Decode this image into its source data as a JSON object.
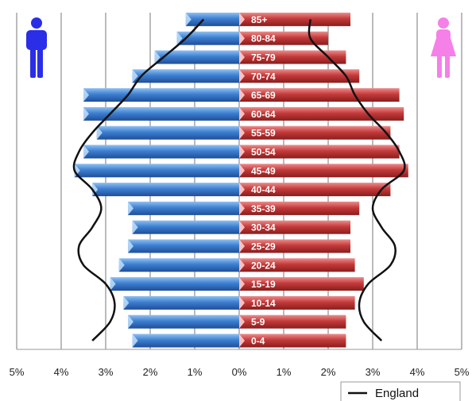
{
  "chart_data": {
    "type": "bar",
    "subtype": "population-pyramid",
    "orientation": "horizontal",
    "categories": [
      "0-4",
      "5-9",
      "10-14",
      "15-19",
      "20-24",
      "25-29",
      "30-34",
      "35-39",
      "40-44",
      "45-49",
      "50-54",
      "55-59",
      "60-64",
      "65-69",
      "70-74",
      "75-79",
      "80-84",
      "85+"
    ],
    "series": [
      {
        "side": "left",
        "color": "#3d7fd0",
        "values": [
          2.4,
          2.5,
          2.6,
          2.9,
          2.7,
          2.5,
          2.4,
          2.5,
          3.3,
          3.7,
          3.5,
          3.2,
          3.5,
          3.5,
          2.4,
          1.9,
          1.4,
          1.2
        ]
      },
      {
        "side": "right",
        "color": "#c43a3a",
        "values": [
          2.4,
          2.4,
          2.6,
          2.8,
          2.6,
          2.5,
          2.5,
          2.7,
          3.4,
          3.8,
          3.6,
          3.4,
          3.7,
          3.6,
          2.7,
          2.4,
          2.0,
          2.5
        ]
      },
      {
        "name": "England",
        "type": "line",
        "color": "#111111",
        "left": [
          3.3,
          2.9,
          2.8,
          3.0,
          3.5,
          3.6,
          3.3,
          3.1,
          3.3,
          3.7,
          3.6,
          3.3,
          2.9,
          2.5,
          2.2,
          1.7,
          1.2,
          0.8
        ],
        "right": [
          3.2,
          2.8,
          2.7,
          2.9,
          3.4,
          3.5,
          3.2,
          3.0,
          3.2,
          3.7,
          3.6,
          3.3,
          2.9,
          2.6,
          2.4,
          2.0,
          1.6,
          1.6
        ]
      }
    ],
    "x_ticks": [
      "5%",
      "4%",
      "3%",
      "2%",
      "1%",
      "0%",
      "1%",
      "2%",
      "3%",
      "4%",
      "5%"
    ],
    "xlim": [
      -5,
      5
    ],
    "grid": true,
    "legend": {
      "position": "bottom-right",
      "entries": [
        "England"
      ]
    },
    "icons": {
      "male": "male-figure-icon",
      "female": "female-figure-icon"
    },
    "colors": {
      "male_icon": "#2a2ee6",
      "female_icon": "#f580e8",
      "gridline": "#777777"
    }
  }
}
